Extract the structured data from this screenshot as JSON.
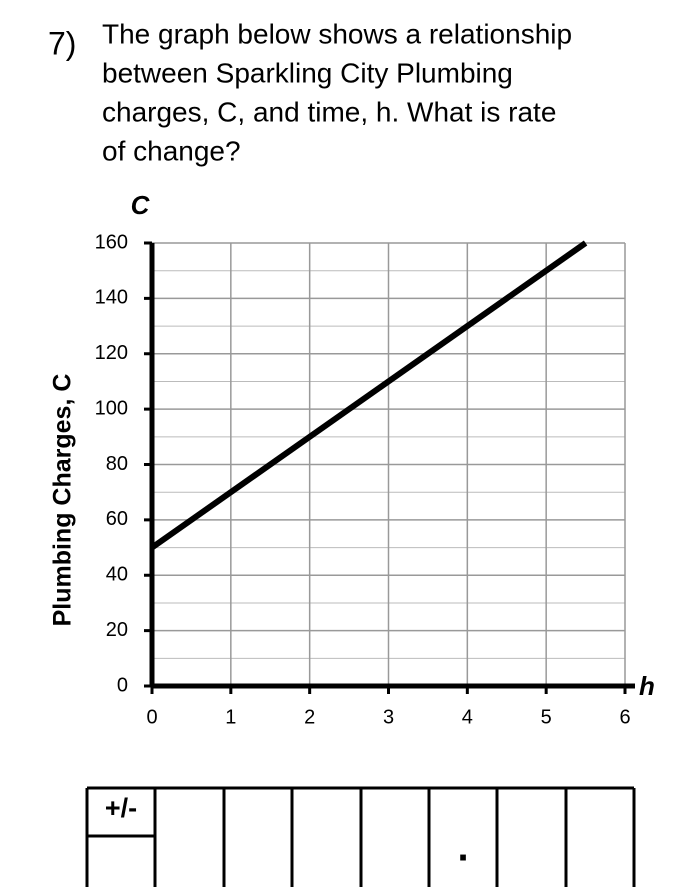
{
  "question": {
    "number": "7)",
    "lines": [
      "The graph below shows a relationship",
      "between Sparkling City Plumbing",
      "charges, C, and time, h. What is rate",
      "of change?"
    ]
  },
  "chart_data": {
    "type": "line",
    "y_axis_title": "Plumbing Charges, C",
    "y_axis_symbol": "C",
    "x_axis_symbol": "h",
    "x": [
      0,
      5.5
    ],
    "series": [
      {
        "values": [
          50,
          160
        ],
        "color": "#000000"
      }
    ],
    "xlim": [
      0,
      6
    ],
    "ylim": [
      0,
      160
    ],
    "xticks": [
      0,
      1,
      2,
      3,
      4,
      5,
      6
    ],
    "yticks": [
      0,
      20,
      40,
      60,
      80,
      100,
      120,
      140,
      160
    ],
    "grid": true,
    "minor_grid": true
  },
  "answer_grid": {
    "sign_label": "+/-",
    "decimal_point": "."
  }
}
